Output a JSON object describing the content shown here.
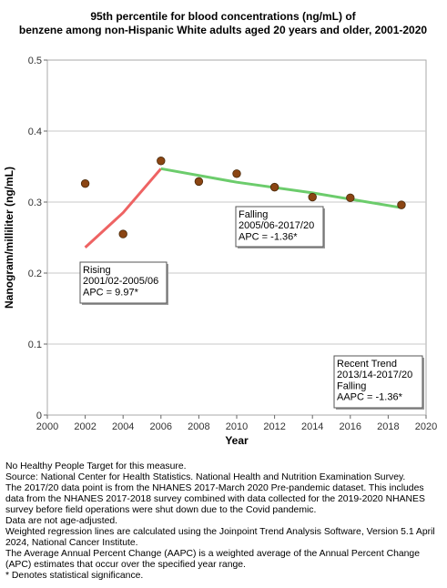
{
  "chart_data": {
    "type": "line",
    "title": [
      "95th percentile for blood concentrations (ng/mL) of",
      "benzene among non-Hispanic White adults aged 20 years and older, 2001-2020"
    ],
    "xlabel": "Year",
    "ylabel": "Nanogram/milliliter (ng/mL)",
    "xlim": [
      2000,
      2020
    ],
    "ylim": [
      0,
      0.5
    ],
    "x_ticks": [
      "2000",
      "2002",
      "2004",
      "2006",
      "2008",
      "2010",
      "2012",
      "2014",
      "2016",
      "2018",
      "2020"
    ],
    "y_ticks": [
      "0",
      "0.1",
      "0.2",
      "0.3",
      "0.4",
      "0.5"
    ],
    "grid": "horizontal",
    "points": {
      "x": [
        2002,
        2004,
        2006,
        2008,
        2010,
        2012,
        2014,
        2016,
        2018.7
      ],
      "y": [
        0.326,
        0.255,
        0.358,
        0.329,
        0.34,
        0.321,
        0.307,
        0.306,
        0.296
      ]
    },
    "trend_segments": [
      {
        "x": [
          2002,
          2004,
          2006
        ],
        "y": [
          0.236,
          0.285,
          0.347
        ],
        "color": "#ee6363"
      },
      {
        "x": [
          2006,
          2010,
          2014,
          2018.7
        ],
        "y": [
          0.347,
          0.328,
          0.313,
          0.292
        ],
        "color": "#6ccc6c"
      }
    ],
    "annotations": [
      {
        "lines": [
          "Rising",
          "2001/02-2005/06",
          "APC =  9.97*"
        ],
        "position": "left-middle"
      },
      {
        "lines": [
          "Falling",
          "2005/06-2017/20",
          "APC = -1.36*"
        ],
        "position": "center"
      },
      {
        "lines": [
          "Recent Trend",
          "2013/14-2017/20",
          "Falling",
          "AAPC = -1.36*"
        ],
        "position": "bottom-right"
      }
    ],
    "colors": {
      "point": "#8b4513",
      "point_stroke": "#4a2a0a",
      "grid": "#c8c8c8"
    }
  },
  "footnotes": [
    "No Healthy People Target for this measure.",
    "Source: National Center for Health Statistics. National Health and Nutrition Examination Survey.",
    "The 2017/20 data point is from the NHANES 2017-March 2020 Pre-pandemic dataset. This includes data from the NHANES 2017-2018 survey combined with data collected for the 2019-2020 NHANES survey before field operations were shut down due to the Covid pandemic.",
    "Data are not age-adjusted.",
    "Weighted regression lines are calculated using the Joinpoint Trend Analysis Software, Version 5.1 April 2024, National Cancer Institute.",
    "The Average Annual Percent Change (AAPC) is a weighted average of the Annual Percent Change (APC) estimates that occur over the specified year range.",
    "* Denotes statistical significance."
  ]
}
